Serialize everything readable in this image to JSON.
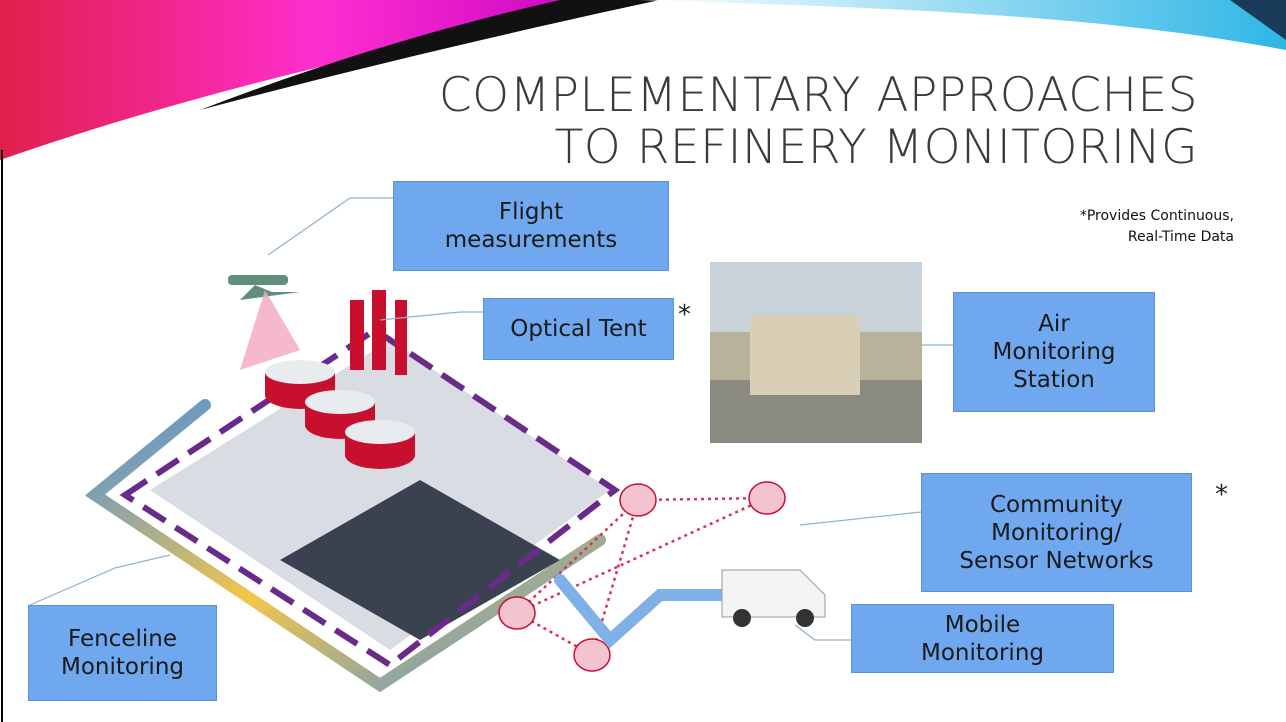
{
  "title": [
    "COMPLEMENTARY APPROACHES",
    "TO REFINERY MONITORING"
  ],
  "note": [
    "*Provides Continuous,",
    "Real-Time Data"
  ],
  "labels": [
    {
      "lines": [
        "Flight",
        "measurements"
      ]
    },
    {
      "lines": [
        "Optical Tent"
      ],
      "marker": "*"
    },
    {
      "lines": [
        "Air",
        "Monitoring",
        "Station"
      ]
    },
    {
      "lines": [
        "Community",
        "Monitoring/",
        "Sensor Networks"
      ],
      "marker": "*"
    },
    {
      "lines": [
        "Mobile",
        "Monitoring"
      ]
    },
    {
      "lines": [
        "Fenceline",
        "Monitoring"
      ]
    }
  ]
}
